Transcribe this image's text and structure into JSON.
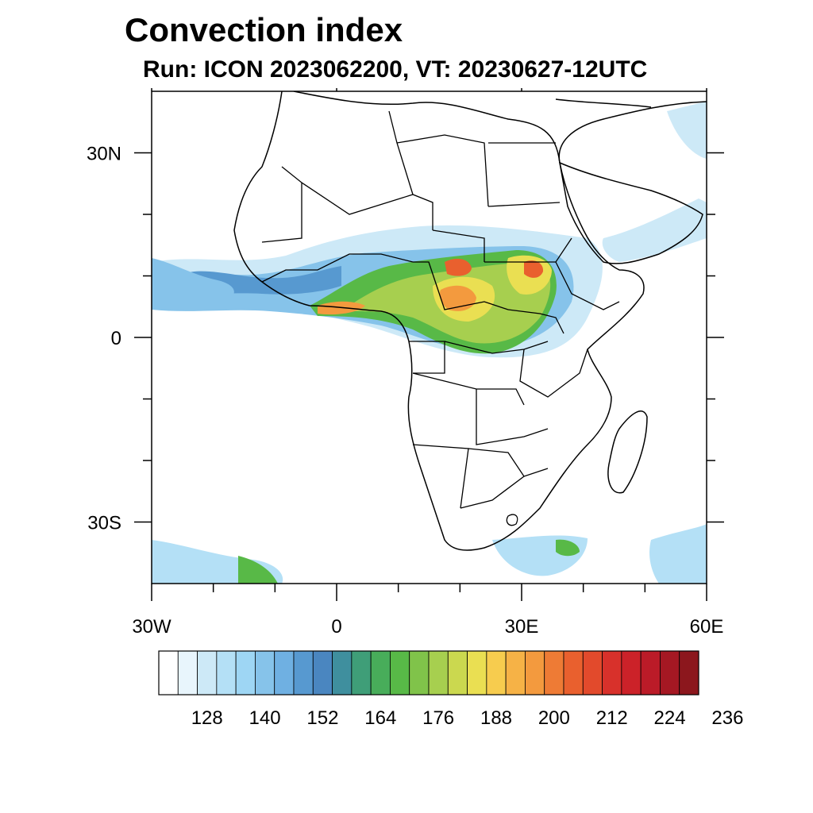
{
  "title": "Convection index",
  "subtitle": "Run: ICON 2023062200,  VT: 20230627-12UTC",
  "map": {
    "lon_range": [
      -30,
      60
    ],
    "lat_range": [
      -40,
      40
    ],
    "x_ticks": [
      {
        "lon": -30,
        "label": "30W"
      },
      {
        "lon": 0,
        "label": "0"
      },
      {
        "lon": 30,
        "label": "30E"
      },
      {
        "lon": 60,
        "label": "60E"
      }
    ],
    "y_ticks": [
      {
        "lat": 30,
        "label": "30N"
      },
      {
        "lat": 0,
        "label": "0"
      },
      {
        "lat": -30,
        "label": "30S"
      }
    ],
    "minor_lon": [
      -20,
      -10,
      10,
      20,
      40,
      50
    ],
    "minor_lat": [
      20,
      10,
      -10,
      -20
    ]
  },
  "colorbar": {
    "colors": [
      "#ffffff",
      "#e8f5fc",
      "#cde9f7",
      "#b4e0f6",
      "#9ed6f4",
      "#86c3ea",
      "#6fb0e2",
      "#5799d0",
      "#4a86c0",
      "#3f8f9e",
      "#3f9e78",
      "#48ad5a",
      "#58b947",
      "#80c34a",
      "#a7cf4f",
      "#cbd84f",
      "#eadf52",
      "#f7cc4e",
      "#f6b246",
      "#f39a3e",
      "#ee7b35",
      "#e9602e",
      "#e24a2c",
      "#d8312b",
      "#cc2229",
      "#bb1b28",
      "#a51823",
      "#8c171d"
    ],
    "labels": [
      "128",
      "140",
      "152",
      "164",
      "176",
      "188",
      "200",
      "212",
      "224",
      "236"
    ]
  }
}
